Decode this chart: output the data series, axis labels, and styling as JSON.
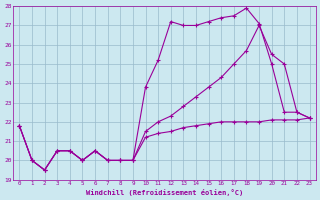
{
  "xlabel": "Windchill (Refroidissement éolien,°C)",
  "bg_color": "#cce8f0",
  "line_color": "#990099",
  "grid_color": "#99bbcc",
  "xlim": [
    -0.5,
    23.5
  ],
  "ylim": [
    19,
    28
  ],
  "yticks": [
    19,
    20,
    21,
    22,
    23,
    24,
    25,
    26,
    27,
    28
  ],
  "xticks": [
    0,
    1,
    2,
    3,
    4,
    5,
    6,
    7,
    8,
    9,
    10,
    11,
    12,
    13,
    14,
    15,
    16,
    17,
    18,
    19,
    20,
    21,
    22,
    23
  ],
  "line1_x": [
    0,
    1,
    2,
    3,
    4,
    5,
    6,
    7,
    8,
    9,
    10,
    11,
    12,
    13,
    14,
    15,
    16,
    17,
    18,
    19,
    20,
    21,
    22,
    23
  ],
  "line1_y": [
    21.8,
    20.0,
    19.5,
    20.5,
    20.5,
    20.0,
    20.5,
    20.0,
    20.0,
    20.0,
    21.2,
    21.4,
    21.5,
    21.7,
    21.8,
    21.9,
    22.0,
    22.0,
    22.0,
    22.0,
    22.1,
    22.1,
    22.1,
    22.2
  ],
  "line2_x": [
    0,
    1,
    2,
    3,
    4,
    5,
    6,
    7,
    8,
    9,
    10,
    11,
    12,
    13,
    14,
    15,
    16,
    17,
    18,
    19,
    20,
    21,
    22,
    23
  ],
  "line2_y": [
    21.8,
    20.0,
    19.5,
    20.5,
    20.5,
    20.0,
    20.5,
    20.0,
    20.0,
    20.0,
    23.8,
    25.2,
    27.2,
    27.0,
    27.0,
    27.2,
    27.4,
    27.5,
    27.9,
    27.1,
    25.0,
    22.5,
    22.5,
    22.2
  ],
  "line3_x": [
    0,
    1,
    2,
    3,
    4,
    5,
    6,
    7,
    8,
    9,
    10,
    11,
    12,
    13,
    14,
    15,
    16,
    17,
    18,
    19,
    20,
    21,
    22,
    23
  ],
  "line3_y": [
    21.8,
    20.0,
    19.5,
    20.5,
    20.5,
    20.0,
    20.5,
    20.0,
    20.0,
    20.0,
    21.5,
    22.0,
    22.3,
    22.8,
    23.3,
    23.8,
    24.3,
    25.0,
    25.7,
    27.0,
    25.5,
    25.0,
    22.5,
    22.2
  ]
}
